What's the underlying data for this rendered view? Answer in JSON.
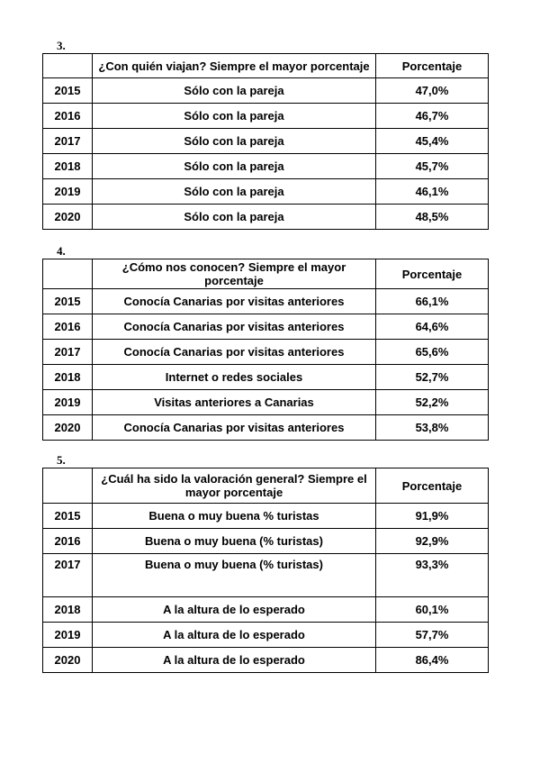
{
  "page": {
    "background": "#ffffff",
    "text_color": "#000000",
    "border_color": "#000000"
  },
  "tables": [
    {
      "number": "3.",
      "header": {
        "question": "¿Con quién viajan? Siempre el mayor porcentaje",
        "percentage": "Porcentaje"
      },
      "rows": [
        {
          "year": "2015",
          "answer": "Sólo con la pareja",
          "value": "47,0%"
        },
        {
          "year": "2016",
          "answer": "Sólo con la pareja",
          "value": "46,7%"
        },
        {
          "year": "2017",
          "answer": "Sólo con la pareja",
          "value": "45,4%"
        },
        {
          "year": "2018",
          "answer": "Sólo con la pareja",
          "value": "45,7%"
        },
        {
          "year": "2019",
          "answer": "Sólo con la pareja",
          "value": "46,1%"
        },
        {
          "year": "2020",
          "answer": "Sólo con la pareja",
          "value": "48,5%"
        }
      ]
    },
    {
      "number": "4.",
      "header": {
        "question": "¿Cómo nos conocen? Siempre el mayor porcentaje",
        "percentage": "Porcentaje"
      },
      "rows": [
        {
          "year": "2015",
          "answer": "Conocía Canarias por visitas anteriores",
          "value": "66,1%"
        },
        {
          "year": "2016",
          "answer": "Conocía Canarias por visitas anteriores",
          "value": "64,6%"
        },
        {
          "year": "2017",
          "answer": "Conocía Canarias por visitas anteriores",
          "value": "65,6%"
        },
        {
          "year": "2018",
          "answer": "Internet o redes sociales",
          "value": "52,7%"
        },
        {
          "year": "2019",
          "answer": "Visitas anteriores a Canarias",
          "value": "52,2%"
        },
        {
          "year": "2020",
          "answer": "Conocía Canarias por visitas anteriores",
          "value": "53,8%"
        }
      ]
    },
    {
      "number": "5.",
      "header": {
        "question": "¿Cuál ha sido la valoración general? Siempre el mayor porcentaje",
        "percentage": "Porcentaje"
      },
      "rows": [
        {
          "year": "2015",
          "answer": "Buena o muy buena % turistas",
          "value": "91,9%"
        },
        {
          "year": "2016",
          "answer": "Buena o muy buena (% turistas)",
          "value": "92,9%"
        },
        {
          "year": "2017",
          "answer": "Buena o muy buena (% turistas)",
          "value": "93,3%"
        },
        {
          "year": "2018",
          "answer": "A la altura de lo esperado",
          "value": "60,1%"
        },
        {
          "year": "2019",
          "answer": "A la altura de lo esperado",
          "value": "57,7%"
        },
        {
          "year": "2020",
          "answer": "A la altura de lo esperado",
          "value": "86,4%"
        }
      ]
    }
  ]
}
